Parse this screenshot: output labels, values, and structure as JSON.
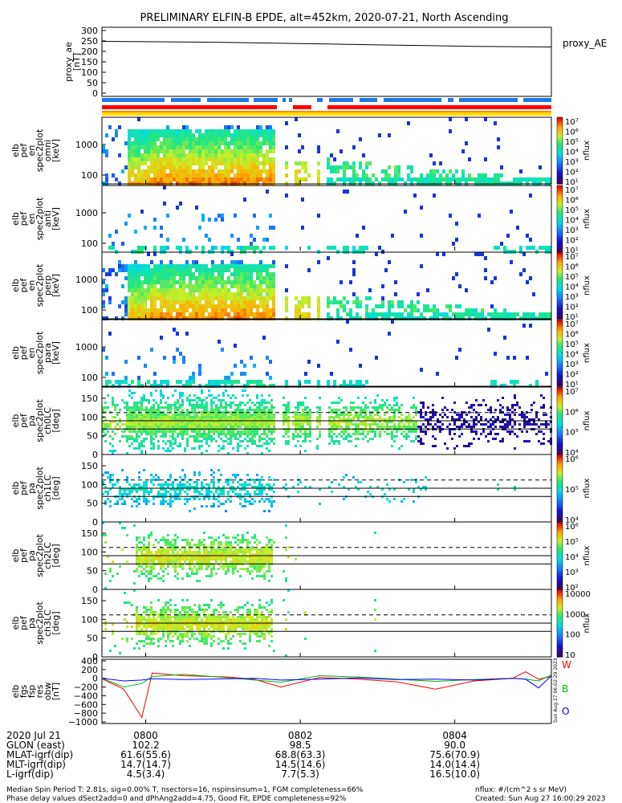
{
  "title": "PRELIMINARY ELFIN-B EPDE, alt=452km, 2020-07-21, North Ascending",
  "chart_data": {
    "type": "heatmap",
    "colors": {
      "spin_blue": "#1e78e6",
      "sci_red": "#ff0000",
      "sci_orange": "#ff8c00",
      "sci_yellow": "#ffdc00",
      "resid_red": "#ff0000",
      "resid_green": "#00b400",
      "resid_blue": "#0000ff"
    },
    "x_ticks": [
      "0800",
      "0802",
      "0804"
    ],
    "x_tick_values": [
      5.0,
      125.0,
      245.0
    ],
    "x_range": [
      -29,
      320
    ],
    "ae_panel": {
      "ylabel": "proxy_ae\n[nT]",
      "legend": "proxy_AE",
      "ylim": [
        0,
        300
      ],
      "ticks": [
        "300",
        "250",
        "200",
        "150",
        "100",
        "50",
        "0"
      ],
      "x": [
        -29,
        60,
        140,
        200,
        260,
        320
      ],
      "y": [
        248,
        244,
        236,
        230,
        224,
        221
      ]
    },
    "spec_panels": [
      {
        "ylabel": "elb\npef\nen\nspec2plot\nomni\n[keV]",
        "ticks": [
          "1000",
          "100"
        ],
        "cb_ticks": [
          "10⁷",
          "10⁶",
          "10⁵",
          "10⁴",
          "10³",
          "10²",
          "10¹"
        ],
        "cb_label": "nflux"
      },
      {
        "ylabel": "elb\npef\nen\nspec2plot\nanti\n[keV]",
        "ticks": [
          "1000",
          "100"
        ],
        "cb_ticks": [
          "10⁷",
          "10⁶",
          "10⁵",
          "10⁴",
          "10³",
          "10²",
          "10¹"
        ],
        "cb_label": "nflux"
      },
      {
        "ylabel": "elb\npef\nen\nspec2plot\nperp\n[keV]",
        "ticks": [
          "1000",
          "100"
        ],
        "cb_ticks": [
          "10⁷",
          "10⁶",
          "10⁵",
          "10⁴",
          "10³",
          "10²",
          "10¹"
        ],
        "cb_label": "nflux"
      },
      {
        "ylabel": "elb\npef\nen\nspec2plot\npara\n[keV]",
        "ticks": [
          "1000",
          "100"
        ],
        "cb_ticks": [
          "10⁷",
          "10⁶",
          "10⁵",
          "10⁴",
          "10³",
          "10²",
          "10¹"
        ],
        "cb_label": "nflux"
      }
    ],
    "pa_panels": [
      {
        "ylabel": "elb\npef\npa\nspec2plot\nch0LC\n[deg]",
        "ticks": [
          "150",
          "100",
          "50",
          "0"
        ],
        "cb_ticks": [
          "10⁷",
          "10⁶",
          "10⁵",
          "10⁴"
        ],
        "cb_label": "nflux"
      },
      {
        "ylabel": "elb\npef\npa\nspec2plot\nch1LC\n[deg]",
        "ticks": [
          "150",
          "100",
          "50",
          "0"
        ],
        "cb_ticks": [
          "10⁶",
          "10⁵",
          "10⁴"
        ],
        "cb_label": "nflux"
      },
      {
        "ylabel": "elb\npef\npa\nspec2plot\nch2LC\n[deg]",
        "ticks": [
          "150",
          "100",
          "50",
          "0"
        ],
        "cb_ticks": [
          "10⁶",
          "10⁵",
          "10⁴",
          "10³",
          "10²"
        ],
        "cb_label": "nflux"
      },
      {
        "ylabel": "elb\npef\npa\nspec2plot\nch3LC\n[deg]",
        "ticks": [
          "150",
          "100",
          "50",
          "0"
        ],
        "cb_ticks": [
          "10000",
          "1000",
          "100",
          "10"
        ],
        "cb_label": "nflux"
      }
    ],
    "resid_panel": {
      "ylabel": "elb\nfgs\nfsp\nres\nobw\n[nT]",
      "ticks": [
        "400",
        "200",
        "0",
        "−200",
        "−400",
        "−600",
        "−800",
        "−1000"
      ],
      "ylim": [
        -1000,
        400
      ],
      "legend": [
        "W",
        "B",
        "O"
      ],
      "stamp": "Sun Aug 27 06:02:29 2023",
      "stamp_right": "Sun Aug 27 16:00:29 2023",
      "series": [
        {
          "name": "W",
          "x": [
            -29,
            -12,
            2,
            10,
            35,
            70,
            90,
            110,
            140,
            170,
            200,
            230,
            260,
            290,
            300,
            310,
            320
          ],
          "y": [
            -10,
            -250,
            -900,
            120,
            60,
            30,
            -30,
            -200,
            20,
            -20,
            -80,
            -250,
            -60,
            0,
            150,
            -20,
            40
          ]
        },
        {
          "name": "B",
          "x": [
            -29,
            -12,
            2,
            10,
            35,
            70,
            90,
            110,
            140,
            170,
            200,
            230,
            260,
            290,
            300,
            310,
            320
          ],
          "y": [
            0,
            -200,
            -120,
            40,
            90,
            10,
            -40,
            -90,
            60,
            30,
            -20,
            -70,
            -30,
            0,
            -20,
            -60,
            80
          ]
        },
        {
          "name": "O",
          "x": [
            -29,
            -12,
            2,
            10,
            35,
            70,
            90,
            110,
            140,
            170,
            200,
            230,
            260,
            290,
            300,
            310,
            320
          ],
          "y": [
            0,
            -60,
            -40,
            -10,
            -30,
            -10,
            0,
            -40,
            -20,
            10,
            -30,
            -20,
            -40,
            0,
            -20,
            -220,
            60
          ]
        }
      ]
    },
    "footer_rows": [
      [
        "2020 Jul 21",
        "0800",
        "0802",
        "0804"
      ],
      [
        "GLON (east)",
        "102.2",
        "98.5",
        "90.0"
      ],
      [
        "MLAT-igrf(dip)",
        "61.6(55.6)",
        "68.8(63.3)",
        "75.6(70.9)"
      ],
      [
        "MLT-igrf(dip)",
        "14.7(14.7)",
        "14.5(14.6)",
        "14.0(14.4)"
      ],
      [
        "L-igrf(dip)",
        "4.5(3.4)",
        "7.7(5.3)",
        "16.5(10.0)"
      ]
    ],
    "notes": [
      "Median Spin Period T: 2.81s, sig=0.00% T, nsectors=16, nspinsinsum=1, FGM completeness=66%",
      "Phase delay values dSect2add=0 and dPhAng2add=4.75, Good Fit, EPDE completeness=92%"
    ],
    "notes_right": [
      "nflux: #/(cm^2 s sr MeV)",
      "Created: Sun Aug 27 16:00:29 2023"
    ]
  }
}
